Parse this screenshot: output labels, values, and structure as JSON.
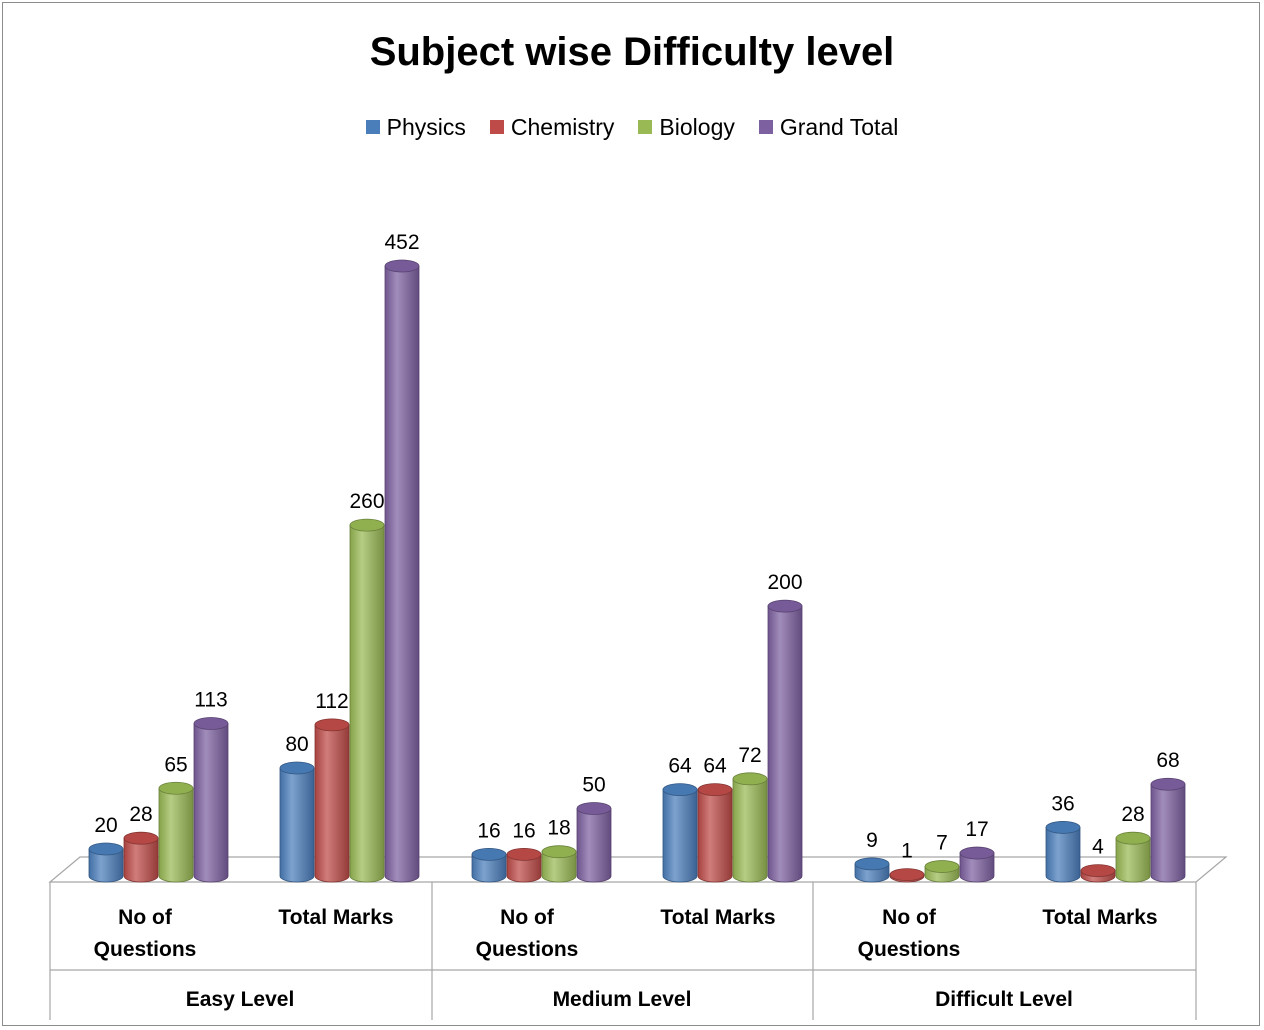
{
  "chart_data": {
    "type": "bar",
    "title": "Subject wise Difficulty level",
    "groups": [
      "Easy Level",
      "Medium Level",
      "Difficult Level"
    ],
    "sub_categories": [
      "No of Questions",
      "Total Marks"
    ],
    "categories": [
      "Easy Level - No of Questions",
      "Easy Level - Total Marks",
      "Medium Level - No of Questions",
      "Medium Level - Total Marks",
      "Difficult Level - No of Questions",
      "Difficult Level - Total Marks"
    ],
    "series": [
      {
        "name": "Physics",
        "color": "#4a7ebb",
        "values": [
          20,
          80,
          16,
          64,
          9,
          36
        ]
      },
      {
        "name": "Chemistry",
        "color": "#be4b48",
        "values": [
          28,
          112,
          16,
          64,
          1,
          4
        ]
      },
      {
        "name": "Biology",
        "color": "#98b954",
        "values": [
          65,
          260,
          18,
          72,
          7,
          28
        ]
      },
      {
        "name": "Grand Total",
        "color": "#7d60a0",
        "values": [
          113,
          452,
          50,
          200,
          17,
          68
        ]
      }
    ],
    "legend_position": "top",
    "grid": false,
    "data_labels": true
  }
}
